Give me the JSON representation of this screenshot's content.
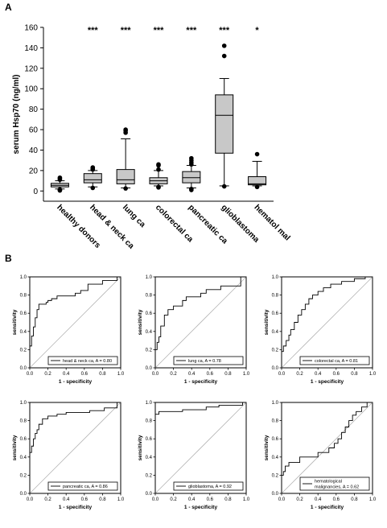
{
  "chart_data": [
    {
      "type": "box",
      "panel": "A",
      "ylabel": "serum Hsp70 (ng/ml)",
      "ylim": [
        -10,
        160
      ],
      "yticks": [
        0,
        20,
        40,
        60,
        80,
        100,
        120,
        140,
        160
      ],
      "categories": [
        "healthy donors",
        "head & neck ca",
        "lung ca",
        "colorectal ca",
        "pancreatic ca",
        "glioblastoma",
        "hematol mal"
      ],
      "significance": [
        "",
        "***",
        "***",
        "***",
        "***",
        "***",
        "*"
      ],
      "boxes": [
        {
          "whisker_low": 2,
          "q1": 4,
          "median": 5.5,
          "q3": 7.5,
          "whisker_high": 10,
          "outliers": [
            0.5,
            1,
            1.5,
            11,
            12,
            13
          ]
        },
        {
          "whisker_low": 4,
          "q1": 8,
          "median": 11,
          "q3": 17,
          "whisker_high": 20,
          "outliers": [
            3,
            21,
            22,
            23
          ]
        },
        {
          "whisker_low": 3,
          "q1": 7,
          "median": 11,
          "q3": 21,
          "whisker_high": 51,
          "outliers": [
            2.5,
            57,
            59,
            60
          ]
        },
        {
          "whisker_low": 5,
          "q1": 7,
          "median": 10,
          "q3": 13,
          "whisker_high": 20,
          "outliers": [
            3.5,
            4,
            21,
            25,
            26
          ]
        },
        {
          "whisker_low": 3,
          "q1": 8,
          "median": 13,
          "q3": 19,
          "whisker_high": 25,
          "outliers": [
            1,
            2,
            26,
            28,
            30,
            32
          ]
        },
        {
          "whisker_low": 5,
          "q1": 37,
          "median": 74,
          "q3": 94,
          "whisker_high": 110,
          "outliers": [
            4.5,
            132,
            142
          ]
        },
        {
          "whisker_low": 5,
          "q1": 6,
          "median": 7,
          "q3": 14,
          "whisker_high": 29,
          "outliers": [
            4,
            36
          ]
        }
      ]
    },
    {
      "type": "line",
      "panel": "B",
      "xlabel": "1 - specificity",
      "ylabel": "sensitivity",
      "xlim": [
        0,
        1
      ],
      "ylim": [
        0,
        1
      ],
      "ticks": [
        "0.0",
        "0.2",
        "0.4",
        "0.6",
        "0.8",
        "1.0"
      ],
      "series": [
        {
          "name": "head & neck ca, A = 0.80",
          "x": [
            0,
            0,
            0.02,
            0.02,
            0.04,
            0.04,
            0.06,
            0.06,
            0.08,
            0.08,
            0.1,
            0.1,
            0.18,
            0.18,
            0.2,
            0.2,
            0.24,
            0.24,
            0.3,
            0.3,
            0.5,
            0.5,
            0.56,
            0.56,
            0.64,
            0.64,
            0.8,
            0.8,
            0.96,
            0.96,
            1
          ],
          "y": [
            0,
            0.24,
            0.24,
            0.35,
            0.35,
            0.45,
            0.45,
            0.55,
            0.55,
            0.64,
            0.64,
            0.7,
            0.7,
            0.72,
            0.72,
            0.74,
            0.74,
            0.76,
            0.76,
            0.79,
            0.79,
            0.82,
            0.82,
            0.85,
            0.85,
            0.92,
            0.92,
            0.96,
            0.96,
            1,
            1
          ]
        },
        {
          "name": "lung ca, A = 0.78",
          "x": [
            0,
            0,
            0.02,
            0.02,
            0.04,
            0.04,
            0.06,
            0.06,
            0.1,
            0.1,
            0.14,
            0.14,
            0.2,
            0.2,
            0.3,
            0.3,
            0.34,
            0.34,
            0.5,
            0.5,
            0.56,
            0.56,
            0.72,
            0.72,
            0.94,
            0.94,
            1
          ],
          "y": [
            0,
            0.2,
            0.2,
            0.28,
            0.28,
            0.34,
            0.34,
            0.46,
            0.46,
            0.58,
            0.58,
            0.64,
            0.64,
            0.68,
            0.68,
            0.74,
            0.74,
            0.78,
            0.78,
            0.82,
            0.82,
            0.86,
            0.86,
            0.9,
            0.9,
            1,
            1
          ]
        },
        {
          "name": "colorectal ca, A = 0.81",
          "x": [
            0,
            0,
            0.02,
            0.02,
            0.05,
            0.05,
            0.08,
            0.08,
            0.1,
            0.1,
            0.14,
            0.14,
            0.18,
            0.18,
            0.22,
            0.22,
            0.26,
            0.26,
            0.3,
            0.3,
            0.34,
            0.34,
            0.4,
            0.4,
            0.46,
            0.46,
            0.54,
            0.54,
            0.66,
            0.66,
            0.8,
            0.8,
            0.92,
            0.92,
            1
          ],
          "y": [
            0,
            0.18,
            0.18,
            0.24,
            0.24,
            0.3,
            0.3,
            0.36,
            0.36,
            0.42,
            0.42,
            0.5,
            0.5,
            0.58,
            0.58,
            0.64,
            0.64,
            0.7,
            0.7,
            0.76,
            0.76,
            0.8,
            0.8,
            0.84,
            0.84,
            0.88,
            0.88,
            0.92,
            0.92,
            0.95,
            0.95,
            0.98,
            0.98,
            1,
            1
          ]
        },
        {
          "name": "pancreatic ca, A = 0.86",
          "x": [
            0,
            0,
            0.02,
            0.02,
            0.04,
            0.04,
            0.06,
            0.06,
            0.08,
            0.08,
            0.1,
            0.1,
            0.14,
            0.14,
            0.2,
            0.2,
            0.3,
            0.3,
            0.4,
            0.4,
            0.66,
            0.66,
            0.82,
            0.82,
            0.96,
            0.96,
            1
          ],
          "y": [
            0,
            0.45,
            0.45,
            0.52,
            0.52,
            0.6,
            0.6,
            0.66,
            0.66,
            0.7,
            0.7,
            0.76,
            0.76,
            0.82,
            0.82,
            0.85,
            0.85,
            0.87,
            0.87,
            0.89,
            0.89,
            0.91,
            0.91,
            0.94,
            0.94,
            1,
            1
          ]
        },
        {
          "name": "glioblastoma, A = 0.92",
          "x": [
            0,
            0,
            0.04,
            0.04,
            0.3,
            0.3,
            0.56,
            0.56,
            0.7,
            0.7,
            0.96,
            0.96,
            1
          ],
          "y": [
            0,
            0.87,
            0.87,
            0.9,
            0.9,
            0.92,
            0.92,
            0.95,
            0.95,
            0.97,
            0.97,
            1,
            1
          ]
        },
        {
          "name": "hematological malignancies, A = 0.62",
          "x": [
            0,
            0,
            0.02,
            0.02,
            0.04,
            0.04,
            0.08,
            0.08,
            0.2,
            0.2,
            0.4,
            0.4,
            0.52,
            0.52,
            0.58,
            0.58,
            0.62,
            0.62,
            0.66,
            0.66,
            0.7,
            0.7,
            0.74,
            0.74,
            0.78,
            0.78,
            0.82,
            0.82,
            0.88,
            0.88,
            0.94,
            0.94,
            1
          ],
          "y": [
            0,
            0.2,
            0.2,
            0.24,
            0.24,
            0.3,
            0.3,
            0.34,
            0.34,
            0.4,
            0.4,
            0.45,
            0.45,
            0.5,
            0.5,
            0.55,
            0.55,
            0.6,
            0.6,
            0.67,
            0.67,
            0.73,
            0.73,
            0.8,
            0.8,
            0.86,
            0.86,
            0.9,
            0.9,
            0.95,
            0.95,
            1,
            1
          ]
        }
      ]
    }
  ]
}
